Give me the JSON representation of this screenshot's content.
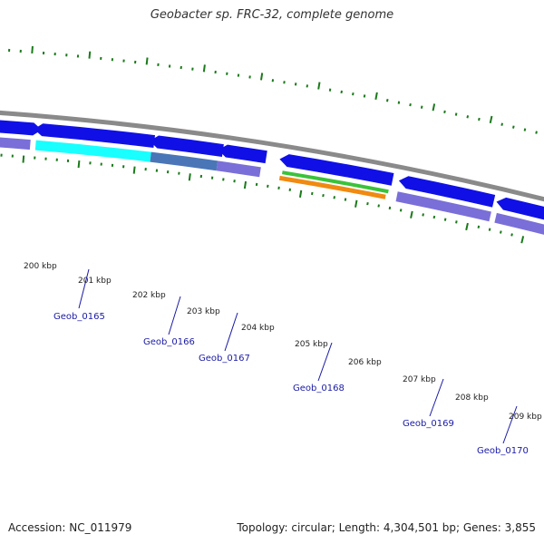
{
  "title": "Geobacter sp. FRC-32, complete genome",
  "footer": {
    "accession": "Accession: NC_011979",
    "stats": "Topology: circular; Length: 4,304,501 bp; Genes: 3,855"
  },
  "ticks": [
    "200 kbp",
    "201 kbp",
    "202 kbp",
    "203 kbp",
    "204 kbp",
    "205 kbp",
    "206 kbp",
    "207 kbp",
    "208 kbp",
    "209 kbp"
  ],
  "genes": [
    "Geob_0165",
    "Geob_0166",
    "Geob_0167",
    "Geob_0168",
    "Geob_0169",
    "Geob_0170"
  ],
  "colors": {
    "backbone": "#8a8a8a",
    "cds": "#1010e6",
    "feature_lavender": "#7a6fd8",
    "feature_cyan": "#19ffff",
    "feature_teal": "#4a76b8",
    "feature_green": "#3ac23a",
    "feature_orange": "#f08a10",
    "gc_ticks": "#1a7a1a",
    "label_link": "#1a1aa6"
  }
}
